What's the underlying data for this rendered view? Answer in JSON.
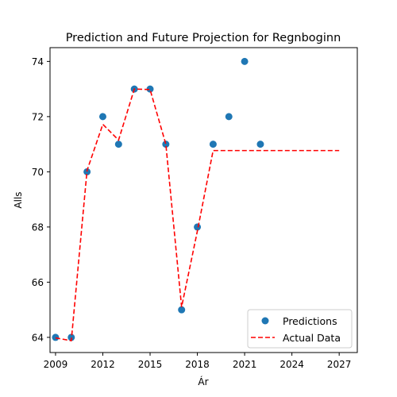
{
  "chart_data": {
    "type": "scatter",
    "title": "Prediction and Future Projection for Regnboginn",
    "xlabel": "Ár",
    "ylabel": "Alls",
    "xlim": [
      2008.65,
      2028.15
    ],
    "ylim": [
      63.45,
      74.5
    ],
    "x_ticks": [
      2009,
      2012,
      2015,
      2018,
      2021,
      2024,
      2027
    ],
    "y_ticks": [
      64,
      66,
      68,
      70,
      72,
      74
    ],
    "grid": false,
    "legend_position": "lower-right",
    "series": [
      {
        "name": "Predictions",
        "kind": "scatter",
        "color": "#1f77b4",
        "x": [
          2009,
          2010,
          2011,
          2012,
          2013,
          2014,
          2015,
          2016,
          2017,
          2018,
          2019,
          2020,
          2021,
          2022
        ],
        "y": [
          64,
          64,
          70,
          72,
          71,
          73,
          73,
          71,
          65,
          68,
          71,
          72,
          74,
          71
        ]
      },
      {
        "name": "Actual Data",
        "kind": "line",
        "style": "dashed",
        "color": "#ff0000",
        "x": [
          2009,
          2010,
          2011,
          2012,
          2013,
          2014,
          2015,
          2016,
          2017,
          2018,
          2019,
          2020,
          2021,
          2022,
          2023,
          2024,
          2025,
          2026,
          2027
        ],
        "y": [
          63.98,
          63.88,
          70.05,
          71.72,
          71.15,
          73.0,
          72.98,
          71.0,
          65.1,
          67.85,
          70.77,
          70.77,
          70.77,
          70.77,
          70.77,
          70.77,
          70.77,
          70.77,
          70.77
        ]
      }
    ]
  }
}
